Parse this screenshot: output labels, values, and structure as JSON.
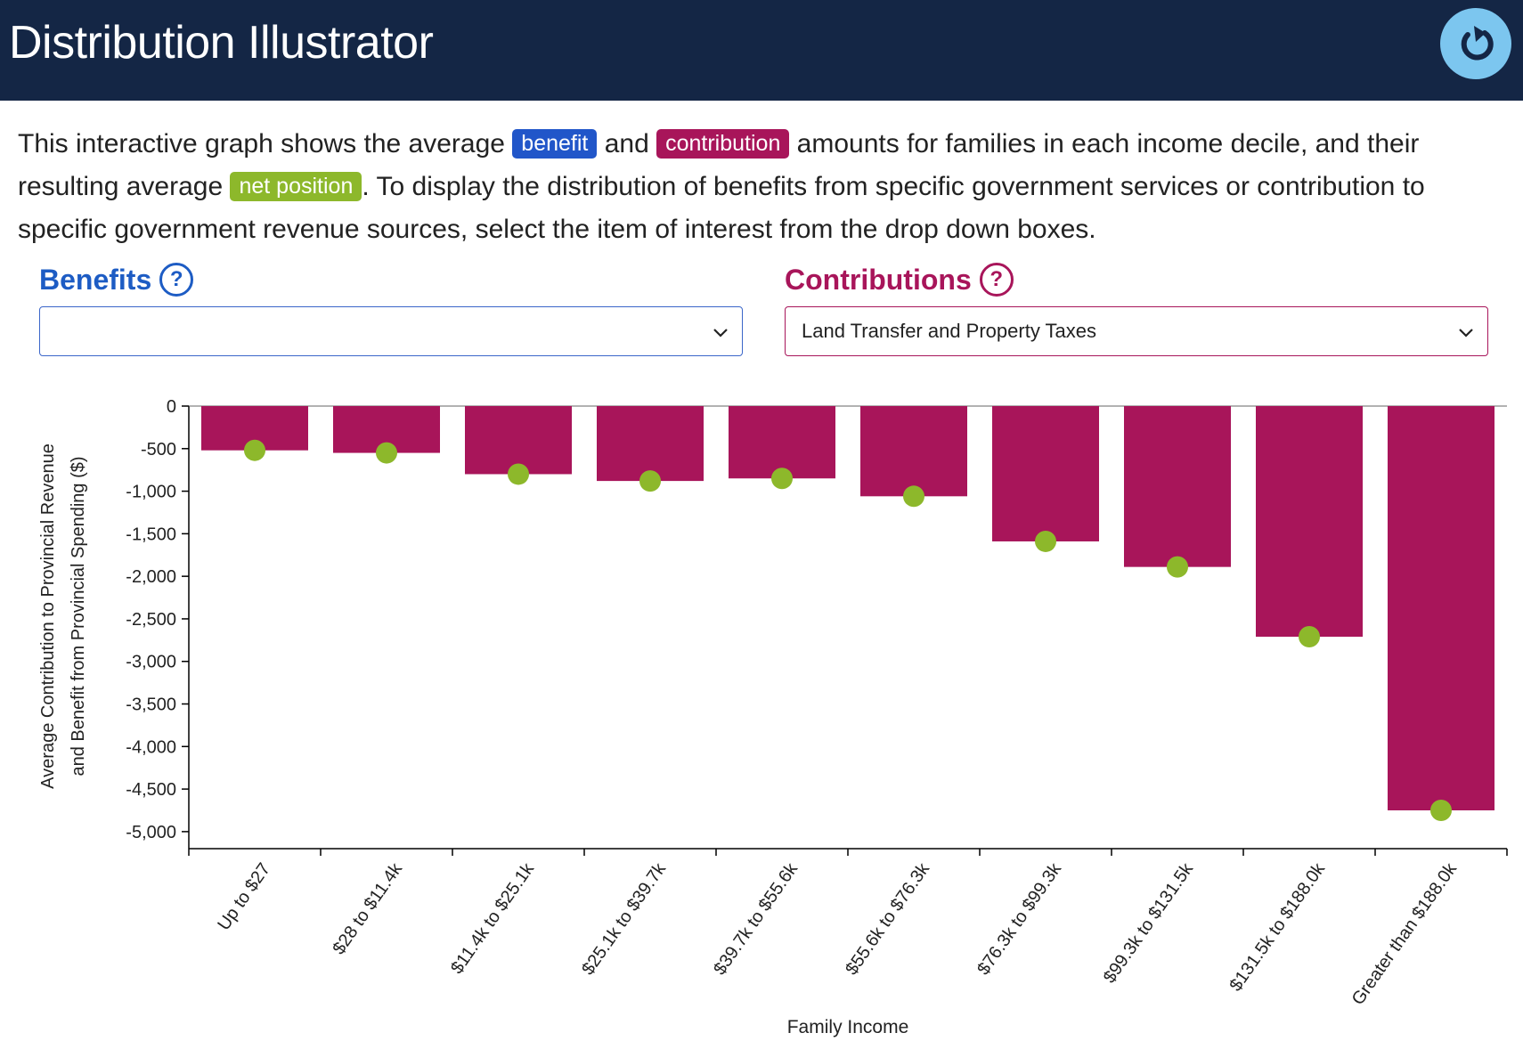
{
  "app": {
    "title": "Distribution Illustrator"
  },
  "intro": {
    "p1": "This interactive graph shows the average ",
    "benefit_chip": "benefit",
    "p2": " and ",
    "contribution_chip": "contribution",
    "p3": " amounts for families in each income decile, and their resulting average ",
    "net_chip": "net position",
    "p4": ". To display the distribution of benefits from specific government services or contribution to specific government revenue sources, select the item of interest from the drop down boxes."
  },
  "benefits": {
    "label": "Benefits",
    "help": "?",
    "selected": ""
  },
  "contributions": {
    "label": "Contributions",
    "help": "?",
    "selected": "Land Transfer and Property Taxes"
  },
  "colors": {
    "header": "#142645",
    "benefit": "#2156c9",
    "contribution": "#a8155a",
    "net": "#8db82b"
  },
  "icons": {
    "reset": "reset-icon",
    "help": "question-circle-icon",
    "dropdown": "chevron-down-icon"
  },
  "chart_data": {
    "type": "bar",
    "categories": [
      "Up to $27",
      "$28 to $11.4k",
      "$11.4k to $25.1k",
      "$25.1k to $39.7k",
      "$39.7k to $55.6k",
      "$55.6k to $76.3k",
      "$76.3k to $99.3k",
      "$99.3k to $131.5k",
      "$131.5k to $188.0k",
      "Greater than $188.0k"
    ],
    "series": [
      {
        "name": "contribution",
        "values": [
          -520,
          -550,
          -800,
          -880,
          -850,
          -1060,
          -1590,
          -1890,
          -2710,
          -4750
        ]
      },
      {
        "name": "net position",
        "values": [
          -520,
          -550,
          -800,
          -880,
          -850,
          -1060,
          -1590,
          -1890,
          -2710,
          -4750
        ]
      }
    ],
    "xlabel": "Family Income",
    "ylabel": [
      "Average Contribution to Provincial Revenue",
      "and Benefit from Provincial Spending ($)"
    ],
    "yticks": [
      0,
      -500,
      -1000,
      -1500,
      -2000,
      -2500,
      -3000,
      -3500,
      -4000,
      -4500,
      -5000
    ],
    "ytick_labels": [
      "0",
      "-500",
      "-1,000",
      "-1,500",
      "-2,000",
      "-2,500",
      "-3,000",
      "-3,500",
      "-4,000",
      "-4,500",
      "-5,000"
    ],
    "ylim": [
      -5200,
      0
    ],
    "grid": false,
    "legend": "none"
  }
}
